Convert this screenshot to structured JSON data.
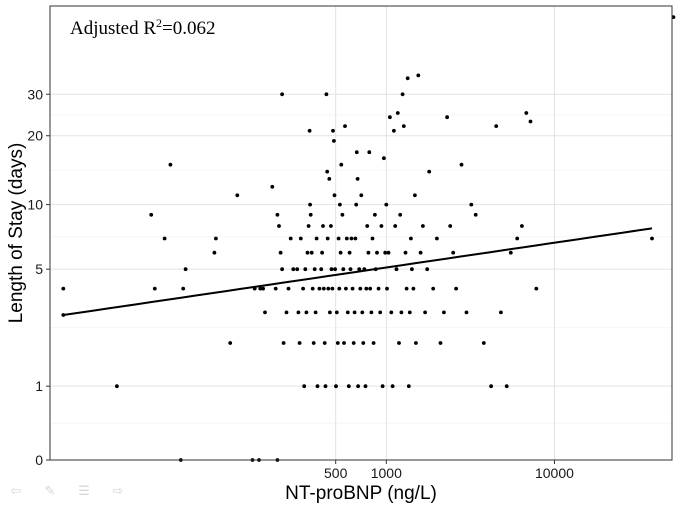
{
  "chart_data": {
    "type": "scatter",
    "title": "",
    "xlabel": "NT-proBNP (ng/L)",
    "ylabel": "Length of Stay (days)",
    "x_scale": "log10",
    "y_scale": "log(y+1)",
    "xlim": [
      10,
      50000
    ],
    "ylim": [
      0,
      70
    ],
    "x_ticks": [
      500,
      1000,
      10000
    ],
    "x_tick_labels": [
      "500",
      "1000",
      "10000"
    ],
    "y_ticks": [
      0,
      1,
      5,
      10,
      20,
      30
    ],
    "y_tick_labels": [
      "0",
      "1",
      "5",
      "10",
      "20",
      "30"
    ],
    "grid": true,
    "annotation": {
      "prefix": "Adjusted R",
      "superscript": "2",
      "suffix": "=0.062"
    },
    "fit_line": {
      "x": [
        12,
        38000
      ],
      "y": [
        2.9,
        7.8
      ]
    },
    "points": [
      [
        12,
        4
      ],
      [
        12,
        2.9
      ],
      [
        25,
        1
      ],
      [
        40,
        9
      ],
      [
        42,
        4
      ],
      [
        48,
        7
      ],
      [
        52,
        15
      ],
      [
        60,
        0
      ],
      [
        62,
        4
      ],
      [
        64,
        5
      ],
      [
        95,
        6
      ],
      [
        97,
        7
      ],
      [
        130,
        11
      ],
      [
        118,
        2
      ],
      [
        160,
        0
      ],
      [
        175,
        0
      ],
      [
        165,
        4
      ],
      [
        178,
        4
      ],
      [
        185,
        4
      ],
      [
        190,
        3
      ],
      [
        210,
        12
      ],
      [
        225,
        0
      ],
      [
        220,
        4
      ],
      [
        225,
        9
      ],
      [
        230,
        8
      ],
      [
        235,
        6
      ],
      [
        240,
        30
      ],
      [
        240,
        5
      ],
      [
        245,
        2
      ],
      [
        255,
        3
      ],
      [
        262,
        4
      ],
      [
        270,
        7
      ],
      [
        280,
        5
      ],
      [
        295,
        5
      ],
      [
        300,
        3
      ],
      [
        305,
        2
      ],
      [
        310,
        7
      ],
      [
        320,
        4
      ],
      [
        325,
        1
      ],
      [
        330,
        5
      ],
      [
        335,
        3
      ],
      [
        340,
        6
      ],
      [
        345,
        8
      ],
      [
        350,
        21
      ],
      [
        352,
        10
      ],
      [
        355,
        9
      ],
      [
        360,
        6
      ],
      [
        365,
        4
      ],
      [
        370,
        2
      ],
      [
        375,
        5
      ],
      [
        380,
        3
      ],
      [
        385,
        7
      ],
      [
        390,
        1
      ],
      [
        400,
        4
      ],
      [
        410,
        5
      ],
      [
        415,
        6
      ],
      [
        420,
        8
      ],
      [
        425,
        4
      ],
      [
        430,
        2
      ],
      [
        435,
        1
      ],
      [
        440,
        30
      ],
      [
        445,
        14
      ],
      [
        448,
        7
      ],
      [
        452,
        4
      ],
      [
        458,
        13
      ],
      [
        462,
        3
      ],
      [
        468,
        8
      ],
      [
        472,
        5
      ],
      [
        478,
        4
      ],
      [
        482,
        21
      ],
      [
        488,
        19
      ],
      [
        492,
        11
      ],
      [
        496,
        5
      ],
      [
        502,
        1
      ],
      [
        508,
        3
      ],
      [
        515,
        2
      ],
      [
        520,
        7
      ],
      [
        525,
        4
      ],
      [
        530,
        10
      ],
      [
        535,
        6
      ],
      [
        540,
        15
      ],
      [
        548,
        9
      ],
      [
        555,
        5
      ],
      [
        560,
        2
      ],
      [
        568,
        22
      ],
      [
        575,
        4
      ],
      [
        582,
        7
      ],
      [
        590,
        3
      ],
      [
        598,
        1
      ],
      [
        605,
        6
      ],
      [
        612,
        5
      ],
      [
        620,
        7
      ],
      [
        630,
        4
      ],
      [
        640,
        2
      ],
      [
        648,
        3
      ],
      [
        655,
        7
      ],
      [
        662,
        10
      ],
      [
        668,
        17
      ],
      [
        675,
        13
      ],
      [
        680,
        1
      ],
      [
        690,
        5
      ],
      [
        700,
        4
      ],
      [
        710,
        11
      ],
      [
        720,
        3
      ],
      [
        730,
        2
      ],
      [
        740,
        5
      ],
      [
        752,
        1
      ],
      [
        760,
        4
      ],
      [
        770,
        8
      ],
      [
        782,
        6
      ],
      [
        792,
        17
      ],
      [
        802,
        4
      ],
      [
        815,
        3
      ],
      [
        828,
        7
      ],
      [
        840,
        2
      ],
      [
        855,
        9
      ],
      [
        865,
        5
      ],
      [
        880,
        6
      ],
      [
        900,
        4
      ],
      [
        920,
        3
      ],
      [
        935,
        8
      ],
      [
        950,
        1
      ],
      [
        968,
        16
      ],
      [
        985,
        6
      ],
      [
        1000,
        10
      ],
      [
        1010,
        4
      ],
      [
        1030,
        6
      ],
      [
        1050,
        24
      ],
      [
        1070,
        3
      ],
      [
        1090,
        1
      ],
      [
        1110,
        21
      ],
      [
        1130,
        8
      ],
      [
        1150,
        5
      ],
      [
        1170,
        25
      ],
      [
        1190,
        2
      ],
      [
        1210,
        9
      ],
      [
        1230,
        3
      ],
      [
        1250,
        30
      ],
      [
        1270,
        22
      ],
      [
        1300,
        6
      ],
      [
        1320,
        4
      ],
      [
        1340,
        35
      ],
      [
        1360,
        1
      ],
      [
        1380,
        3
      ],
      [
        1400,
        7
      ],
      [
        1420,
        5
      ],
      [
        1450,
        4
      ],
      [
        1480,
        11
      ],
      [
        1500,
        2
      ],
      [
        1550,
        36
      ],
      [
        1600,
        6
      ],
      [
        1650,
        8
      ],
      [
        1700,
        3
      ],
      [
        1750,
        5
      ],
      [
        1800,
        14
      ],
      [
        1900,
        4
      ],
      [
        2000,
        7
      ],
      [
        2100,
        2
      ],
      [
        2200,
        3
      ],
      [
        2300,
        24
      ],
      [
        2400,
        8
      ],
      [
        2500,
        6
      ],
      [
        2600,
        4
      ],
      [
        2800,
        15
      ],
      [
        3000,
        3
      ],
      [
        3200,
        10
      ],
      [
        3400,
        9
      ],
      [
        3800,
        2
      ],
      [
        4200,
        1
      ],
      [
        4500,
        22
      ],
      [
        4800,
        3
      ],
      [
        5200,
        1
      ],
      [
        5500,
        6
      ],
      [
        6000,
        7
      ],
      [
        6400,
        8
      ],
      [
        6800,
        25
      ],
      [
        7200,
        23
      ],
      [
        7800,
        4
      ],
      [
        38000,
        7
      ],
      [
        51000,
        63
      ]
    ]
  },
  "toolbar": {
    "icons": [
      "arrow-left-icon",
      "pen-icon",
      "menu-icon",
      "arrow-right-icon"
    ]
  }
}
